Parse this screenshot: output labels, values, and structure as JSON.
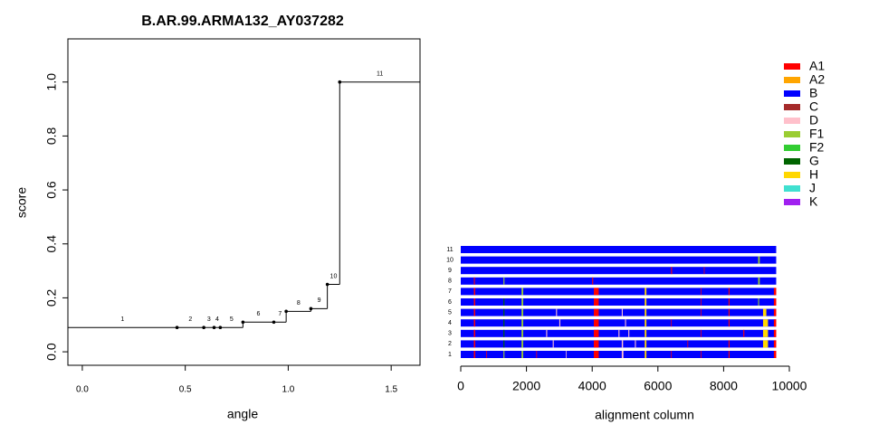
{
  "chart_data": [
    {
      "type": "step",
      "title": "B.AR.99.ARMA132_AY037282",
      "xlabel": "angle",
      "ylabel": "score",
      "x": [
        0.46,
        0.59,
        0.64,
        0.67,
        0.78,
        0.93,
        0.99,
        1.11,
        1.19,
        1.25
      ],
      "first_value": 0.09,
      "values": [
        0.09,
        0.09,
        0.09,
        0.09,
        0.11,
        0.11,
        0.15,
        0.16,
        0.25,
        1.0
      ],
      "labels": [
        "1",
        "2",
        "3",
        "4",
        "5",
        "6",
        "7",
        "8",
        "9",
        "10",
        "11"
      ],
      "color": "#000000",
      "xlim": [
        -0.07,
        1.64
      ],
      "ylim": [
        -0.05,
        1.16
      ],
      "xticks": [
        {
          "value": 0,
          "label": "0.0"
        },
        0.5,
        {
          "value": 1,
          "label": "1.0"
        },
        1.5
      ],
      "yticks": [
        {
          "value": 0,
          "label": "0.0"
        },
        0.2,
        0.4,
        0.6,
        0.8,
        {
          "value": 1,
          "label": "1.0"
        }
      ]
    },
    {
      "type": "alignment",
      "xlabel": "alignment column",
      "xlim": [
        0,
        10000
      ],
      "xticks": [
        0,
        2000,
        4000,
        6000,
        8000,
        10000
      ],
      "legend": [
        {
          "name": "A1",
          "color": "#ff0000"
        },
        {
          "name": "A2",
          "color": "#ffa500"
        },
        {
          "name": "B",
          "color": "#0000ff"
        },
        {
          "name": "C",
          "color": "#a52a2a"
        },
        {
          "name": "D",
          "color": "#ffc0cb"
        },
        {
          "name": "F1",
          "color": "#9acd32"
        },
        {
          "name": "F2",
          "color": "#32cd32"
        },
        {
          "name": "G",
          "color": "#006400"
        },
        {
          "name": "H",
          "color": "#ffd700"
        },
        {
          "name": "J",
          "color": "#40e0d0"
        },
        {
          "name": "K",
          "color": "#a020f0"
        }
      ],
      "rows": [
        {
          "label": "1",
          "segments": [
            [
              0,
              9600,
              "B"
            ],
            [
              400,
              440,
              "A1"
            ],
            [
              780,
              800,
              "A1"
            ],
            [
              1300,
              1330,
              "F1"
            ],
            [
              1850,
              1900,
              "F1"
            ],
            [
              2300,
              2320,
              "A1"
            ],
            [
              3200,
              3220,
              "D"
            ],
            [
              4050,
              4200,
              "A1"
            ],
            [
              4900,
              4950,
              "D"
            ],
            [
              5600,
              5650,
              "H"
            ],
            [
              6400,
              6420,
              "A1"
            ],
            [
              7300,
              7320,
              "A1"
            ],
            [
              8150,
              8180,
              "A1"
            ],
            [
              9530,
              9600,
              "A1"
            ]
          ]
        },
        {
          "label": "2",
          "segments": [
            [
              0,
              9600,
              "B"
            ],
            [
              400,
              440,
              "A1"
            ],
            [
              1300,
              1330,
              "G"
            ],
            [
              1850,
              1900,
              "F1"
            ],
            [
              2800,
              2830,
              "D"
            ],
            [
              4050,
              4200,
              "A1"
            ],
            [
              4900,
              4940,
              "D"
            ],
            [
              5300,
              5330,
              "D"
            ],
            [
              5600,
              5650,
              "H"
            ],
            [
              6900,
              6920,
              "A1"
            ],
            [
              8150,
              8180,
              "A1"
            ],
            [
              9200,
              9350,
              "H"
            ],
            [
              9530,
              9600,
              "A1"
            ]
          ]
        },
        {
          "label": "3",
          "segments": [
            [
              0,
              9600,
              "B"
            ],
            [
              400,
              440,
              "A1"
            ],
            [
              1300,
              1330,
              "G"
            ],
            [
              1850,
              1900,
              "F1"
            ],
            [
              2600,
              2630,
              "D"
            ],
            [
              4050,
              4200,
              "A1"
            ],
            [
              4800,
              4830,
              "D"
            ],
            [
              5100,
              5130,
              "D"
            ],
            [
              5600,
              5650,
              "H"
            ],
            [
              7300,
              7320,
              "A1"
            ],
            [
              8600,
              8630,
              "A1"
            ],
            [
              9200,
              9350,
              "H"
            ],
            [
              9530,
              9600,
              "A1"
            ]
          ]
        },
        {
          "label": "4",
          "segments": [
            [
              0,
              9600,
              "B"
            ],
            [
              400,
              440,
              "A1"
            ],
            [
              1300,
              1330,
              "G"
            ],
            [
              1850,
              1900,
              "F1"
            ],
            [
              3000,
              3030,
              "D"
            ],
            [
              4050,
              4200,
              "A1"
            ],
            [
              5000,
              5030,
              "D"
            ],
            [
              5600,
              5650,
              "H"
            ],
            [
              6400,
              6420,
              "A1"
            ],
            [
              8150,
              8180,
              "A1"
            ],
            [
              9200,
              9350,
              "H"
            ],
            [
              9530,
              9600,
              "A1"
            ]
          ]
        },
        {
          "label": "5",
          "segments": [
            [
              0,
              9600,
              "B"
            ],
            [
              400,
              440,
              "A1"
            ],
            [
              1300,
              1330,
              "G"
            ],
            [
              1850,
              1900,
              "F1"
            ],
            [
              2900,
              2930,
              "D"
            ],
            [
              4050,
              4200,
              "A1"
            ],
            [
              4900,
              4930,
              "D"
            ],
            [
              5600,
              5650,
              "H"
            ],
            [
              7300,
              7320,
              "A1"
            ],
            [
              8150,
              8180,
              "A1"
            ],
            [
              9200,
              9300,
              "H"
            ],
            [
              9530,
              9600,
              "A1"
            ]
          ]
        },
        {
          "label": "6",
          "segments": [
            [
              0,
              9600,
              "B"
            ],
            [
              400,
              440,
              "A1"
            ],
            [
              1300,
              1330,
              "G"
            ],
            [
              1850,
              1900,
              "F1"
            ],
            [
              4050,
              4200,
              "A1"
            ],
            [
              5600,
              5650,
              "H"
            ],
            [
              7300,
              7320,
              "A1"
            ],
            [
              8150,
              8180,
              "A1"
            ],
            [
              9050,
              9080,
              "F1"
            ],
            [
              9530,
              9600,
              "A1"
            ]
          ]
        },
        {
          "label": "7",
          "segments": [
            [
              0,
              9600,
              "B"
            ],
            [
              400,
              440,
              "A1"
            ],
            [
              1850,
              1900,
              "F1"
            ],
            [
              4050,
              4200,
              "A1"
            ],
            [
              5600,
              5650,
              "H"
            ],
            [
              7300,
              7320,
              "A1"
            ],
            [
              8150,
              8180,
              "A1"
            ],
            [
              9530,
              9600,
              "A1"
            ]
          ]
        },
        {
          "label": "8",
          "segments": [
            [
              0,
              9600,
              "B"
            ],
            [
              400,
              430,
              "A1"
            ],
            [
              1300,
              1330,
              "F1"
            ],
            [
              4000,
              4030,
              "A1"
            ],
            [
              9050,
              9100,
              "F1"
            ]
          ]
        },
        {
          "label": "9",
          "segments": [
            [
              0,
              9600,
              "B"
            ],
            [
              6400,
              6430,
              "A1"
            ],
            [
              7400,
              7420,
              "A1"
            ]
          ]
        },
        {
          "label": "10",
          "segments": [
            [
              0,
              9600,
              "B"
            ],
            [
              9050,
              9100,
              "F1"
            ]
          ]
        },
        {
          "label": "11",
          "segments": [
            [
              0,
              9600,
              "B"
            ]
          ]
        }
      ]
    }
  ]
}
